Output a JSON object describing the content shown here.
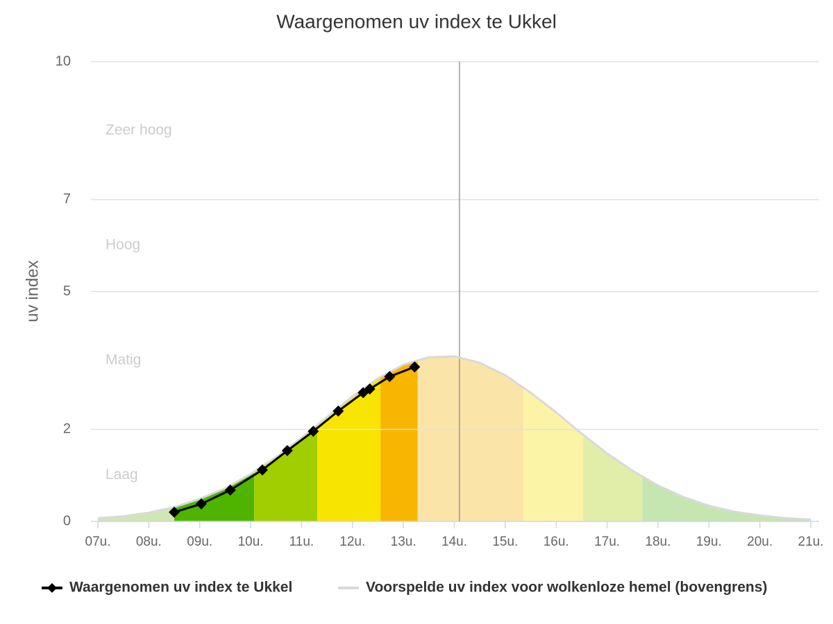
{
  "chart_data": {
    "type": "line",
    "title": "Waargenomen uv index te Ukkel",
    "y_label": "uv index",
    "xlim": [
      7,
      21
    ],
    "ylim": [
      0,
      10
    ],
    "yticks": [
      0,
      2,
      5,
      7,
      10
    ],
    "xticks": [
      {
        "value": 7,
        "label": "07u."
      },
      {
        "value": 8,
        "label": "08u."
      },
      {
        "value": 9,
        "label": "09u."
      },
      {
        "value": 10,
        "label": "10u."
      },
      {
        "value": 11,
        "label": "11u."
      },
      {
        "value": 12,
        "label": "12u."
      },
      {
        "value": 13,
        "label": "13u."
      },
      {
        "value": 14,
        "label": "14u."
      },
      {
        "value": 15,
        "label": "15u."
      },
      {
        "value": 16,
        "label": "16u."
      },
      {
        "value": 17,
        "label": "17u."
      },
      {
        "value": 18,
        "label": "18u."
      },
      {
        "value": 19,
        "label": "19u."
      },
      {
        "value": 20,
        "label": "20u."
      },
      {
        "value": 21,
        "label": "21u."
      }
    ],
    "grid": true,
    "now_x": 14.1,
    "bands": [
      {
        "label": "Laag",
        "from": 0,
        "to": 2
      },
      {
        "label": "Matig",
        "from": 2,
        "to": 5
      },
      {
        "label": "Hoog",
        "from": 5,
        "to": 7
      },
      {
        "label": "Zeer hoog",
        "from": 7,
        "to": 10
      }
    ],
    "zones": [
      {
        "from": 7,
        "to": 8.5,
        "color": "#cfe8b0"
      },
      {
        "from": 8.5,
        "to": 10.07,
        "color": "#4fb400"
      },
      {
        "from": 10.07,
        "to": 11.31,
        "color": "#a0ce00"
      },
      {
        "from": 11.31,
        "to": 12.55,
        "color": "#f7e400"
      },
      {
        "from": 12.55,
        "to": 13.28,
        "color": "#f8b600"
      },
      {
        "from": 13.28,
        "to": 15.36,
        "color": "#fbe4a8"
      },
      {
        "from": 15.36,
        "to": 16.53,
        "color": "#fbf4a6"
      },
      {
        "from": 16.53,
        "to": 17.69,
        "color": "#e0eeaa"
      },
      {
        "from": 17.69,
        "to": 21,
        "color": "#c5e6b0"
      }
    ],
    "series": [
      {
        "name": "Waargenomen uv index te Ukkel",
        "color": "#000000",
        "x": [
          8.5,
          9.03,
          9.6,
          10.23,
          10.72,
          11.23,
          11.72,
          12.21,
          12.34,
          12.73,
          13.22
        ],
        "values": [
          0.2,
          0.38,
          0.68,
          1.12,
          1.54,
          1.96,
          2.4,
          2.8,
          2.88,
          3.15,
          3.36
        ]
      },
      {
        "name": "Voorspelde uv index voor wolkenloze hemel (bovengrens)",
        "color": "#d9d9d9",
        "x": [
          7,
          7.5,
          8,
          8.5,
          9,
          9.5,
          10,
          10.5,
          11,
          11.5,
          12,
          12.5,
          13,
          13.5,
          14,
          14.5,
          15,
          15.5,
          16,
          16.5,
          17,
          17.5,
          18,
          18.5,
          19,
          19.5,
          20,
          20.5,
          21
        ],
        "values": [
          0.07,
          0.11,
          0.19,
          0.31,
          0.49,
          0.72,
          1.03,
          1.4,
          1.82,
          2.27,
          2.72,
          3.11,
          3.41,
          3.57,
          3.59,
          3.45,
          3.18,
          2.8,
          2.37,
          1.91,
          1.48,
          1.1,
          0.78,
          0.53,
          0.34,
          0.21,
          0.13,
          0.07,
          0.04
        ]
      }
    ]
  }
}
